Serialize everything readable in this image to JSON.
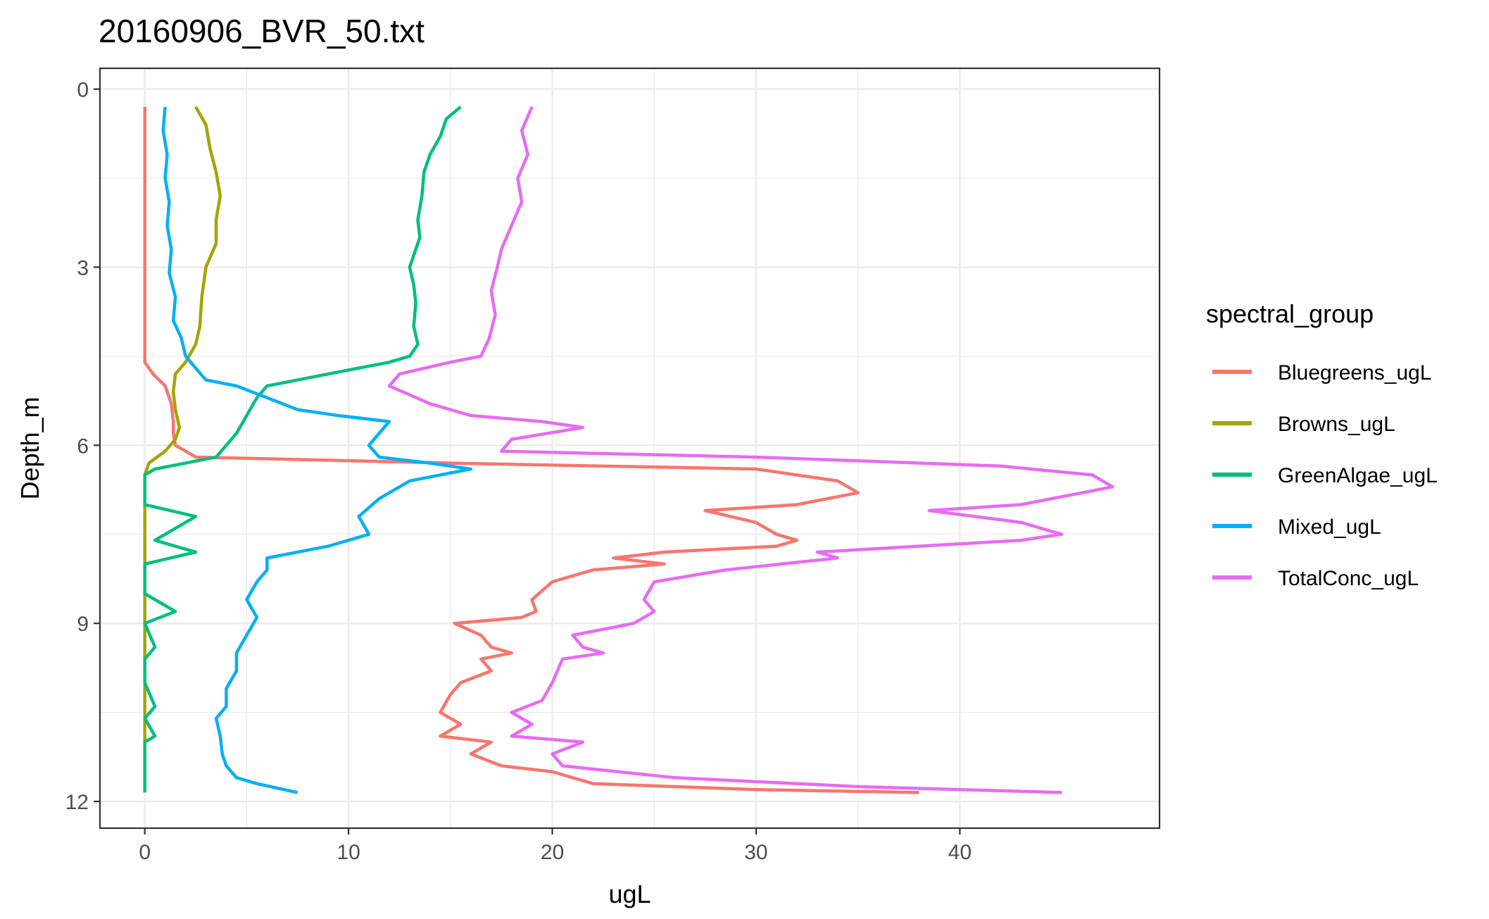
{
  "chart_data": {
    "type": "line",
    "title": "20160906_BVR_50.txt",
    "xlabel": "ugL",
    "ylabel": "Depth_m",
    "xlim": [
      -2.2,
      49.8
    ],
    "ylim": [
      12.45,
      -0.35
    ],
    "y_reversed": true,
    "x_ticks": [
      "0",
      "10",
      "20",
      "30",
      "40"
    ],
    "x_tick_values": [
      0,
      10,
      20,
      30,
      40
    ],
    "y_ticks": [
      "0",
      "3",
      "6",
      "9",
      "12"
    ],
    "y_tick_values": [
      0,
      3,
      6,
      9,
      12
    ],
    "grid": true,
    "legend": {
      "title": "spectral_group",
      "position": "right",
      "entries": [
        "Bluegreens_ugL",
        "Browns_ugL",
        "GreenAlgae_ugL",
        "Mixed_ugL",
        "TotalConc_ugL"
      ]
    },
    "colors": {
      "Bluegreens_ugL": "#F8766D",
      "Browns_ugL": "#A3A500",
      "GreenAlgae_ugL": "#00BF7D",
      "Mixed_ugL": "#00B0F6",
      "TotalConc_ugL": "#E76BF3",
      "grid": "#EBEBEB",
      "panel_border": "#333333"
    },
    "series": [
      {
        "name": "Bluegreens_ugL",
        "points": [
          [
            0.0,
            0.3
          ],
          [
            0.0,
            1.0
          ],
          [
            0.0,
            2.0
          ],
          [
            0.0,
            3.0
          ],
          [
            0.0,
            4.0
          ],
          [
            0.0,
            4.6
          ],
          [
            0.4,
            4.8
          ],
          [
            1.0,
            5.0
          ],
          [
            1.3,
            5.3
          ],
          [
            1.4,
            5.6
          ],
          [
            1.4,
            5.8
          ],
          [
            1.5,
            6.0
          ],
          [
            2.5,
            6.2
          ],
          [
            15.0,
            6.3
          ],
          [
            30.0,
            6.4
          ],
          [
            34.0,
            6.6
          ],
          [
            35.0,
            6.8
          ],
          [
            32.0,
            7.0
          ],
          [
            27.5,
            7.1
          ],
          [
            30.0,
            7.3
          ],
          [
            31.0,
            7.5
          ],
          [
            32.0,
            7.6
          ],
          [
            31.0,
            7.7
          ],
          [
            25.5,
            7.8
          ],
          [
            23.0,
            7.9
          ],
          [
            25.5,
            8.0
          ],
          [
            22.0,
            8.1
          ],
          [
            20.0,
            8.3
          ],
          [
            19.0,
            8.6
          ],
          [
            19.2,
            8.8
          ],
          [
            18.5,
            8.9
          ],
          [
            15.2,
            9.0
          ],
          [
            16.5,
            9.2
          ],
          [
            17.0,
            9.4
          ],
          [
            18.0,
            9.5
          ],
          [
            16.5,
            9.6
          ],
          [
            17.0,
            9.8
          ],
          [
            15.5,
            10.0
          ],
          [
            15.0,
            10.2
          ],
          [
            14.5,
            10.5
          ],
          [
            15.5,
            10.7
          ],
          [
            14.5,
            10.9
          ],
          [
            17.0,
            11.0
          ],
          [
            16.0,
            11.2
          ],
          [
            17.5,
            11.4
          ],
          [
            20.0,
            11.5
          ],
          [
            22.0,
            11.7
          ],
          [
            30.0,
            11.8
          ],
          [
            38.0,
            11.85
          ]
        ]
      },
      {
        "name": "Browns_ugL",
        "points": [
          [
            2.5,
            0.3
          ],
          [
            3.0,
            0.6
          ],
          [
            3.2,
            1.0
          ],
          [
            3.5,
            1.4
          ],
          [
            3.7,
            1.8
          ],
          [
            3.5,
            2.2
          ],
          [
            3.5,
            2.6
          ],
          [
            3.0,
            3.0
          ],
          [
            2.8,
            3.5
          ],
          [
            2.7,
            4.0
          ],
          [
            2.5,
            4.3
          ],
          [
            2.0,
            4.6
          ],
          [
            1.5,
            4.8
          ],
          [
            1.4,
            5.1
          ],
          [
            1.5,
            5.4
          ],
          [
            1.7,
            5.7
          ],
          [
            1.5,
            5.9
          ],
          [
            1.0,
            6.1
          ],
          [
            0.2,
            6.3
          ],
          [
            0.0,
            6.5
          ],
          [
            0.0,
            7.0
          ],
          [
            0.0,
            7.5
          ],
          [
            0.0,
            8.0
          ],
          [
            0.0,
            8.5
          ],
          [
            0.0,
            9.0
          ],
          [
            0.0,
            9.5
          ],
          [
            0.0,
            10.0
          ],
          [
            0.0,
            10.5
          ],
          [
            0.0,
            11.0
          ]
        ]
      },
      {
        "name": "GreenAlgae_ugL",
        "points": [
          [
            15.5,
            0.3
          ],
          [
            14.8,
            0.5
          ],
          [
            14.5,
            0.8
          ],
          [
            14.0,
            1.1
          ],
          [
            13.7,
            1.4
          ],
          [
            13.6,
            1.8
          ],
          [
            13.4,
            2.2
          ],
          [
            13.5,
            2.5
          ],
          [
            13.2,
            2.8
          ],
          [
            13.0,
            3.0
          ],
          [
            13.2,
            3.3
          ],
          [
            13.3,
            3.6
          ],
          [
            13.2,
            4.0
          ],
          [
            13.4,
            4.3
          ],
          [
            13.0,
            4.5
          ],
          [
            12.0,
            4.6
          ],
          [
            9.0,
            4.8
          ],
          [
            6.0,
            5.0
          ],
          [
            5.5,
            5.2
          ],
          [
            5.0,
            5.5
          ],
          [
            4.5,
            5.8
          ],
          [
            4.0,
            6.0
          ],
          [
            3.5,
            6.2
          ],
          [
            2.0,
            6.3
          ],
          [
            0.5,
            6.4
          ],
          [
            0.0,
            6.5
          ],
          [
            0.0,
            7.0
          ],
          [
            2.5,
            7.2
          ],
          [
            1.5,
            7.4
          ],
          [
            0.5,
            7.6
          ],
          [
            2.5,
            7.8
          ],
          [
            0.0,
            8.0
          ],
          [
            0.0,
            8.5
          ],
          [
            1.5,
            8.8
          ],
          [
            0.0,
            9.0
          ],
          [
            0.5,
            9.4
          ],
          [
            0.0,
            9.6
          ],
          [
            0.0,
            10.0
          ],
          [
            0.5,
            10.4
          ],
          [
            0.0,
            10.6
          ],
          [
            0.5,
            10.9
          ],
          [
            0.0,
            11.0
          ],
          [
            0.0,
            11.85
          ]
        ]
      },
      {
        "name": "Mixed_ugL",
        "points": [
          [
            1.0,
            0.3
          ],
          [
            0.9,
            0.7
          ],
          [
            1.1,
            1.1
          ],
          [
            1.0,
            1.5
          ],
          [
            1.2,
            1.9
          ],
          [
            1.1,
            2.3
          ],
          [
            1.3,
            2.7
          ],
          [
            1.2,
            3.1
          ],
          [
            1.5,
            3.5
          ],
          [
            1.4,
            3.9
          ],
          [
            1.8,
            4.2
          ],
          [
            2.0,
            4.5
          ],
          [
            2.5,
            4.7
          ],
          [
            3.0,
            4.9
          ],
          [
            4.5,
            5.0
          ],
          [
            6.0,
            5.2
          ],
          [
            7.5,
            5.4
          ],
          [
            9.5,
            5.5
          ],
          [
            12.0,
            5.6
          ],
          [
            11.5,
            5.8
          ],
          [
            11.0,
            6.0
          ],
          [
            11.5,
            6.2
          ],
          [
            14.0,
            6.3
          ],
          [
            16.0,
            6.4
          ],
          [
            13.0,
            6.6
          ],
          [
            11.5,
            6.9
          ],
          [
            10.5,
            7.2
          ],
          [
            11.0,
            7.5
          ],
          [
            9.0,
            7.7
          ],
          [
            6.0,
            7.9
          ],
          [
            6.0,
            8.1
          ],
          [
            5.5,
            8.3
          ],
          [
            5.0,
            8.6
          ],
          [
            5.5,
            8.9
          ],
          [
            5.0,
            9.2
          ],
          [
            4.5,
            9.5
          ],
          [
            4.5,
            9.8
          ],
          [
            4.0,
            10.1
          ],
          [
            4.0,
            10.4
          ],
          [
            3.5,
            10.6
          ],
          [
            3.7,
            10.9
          ],
          [
            3.8,
            11.2
          ],
          [
            4.0,
            11.4
          ],
          [
            4.5,
            11.6
          ],
          [
            5.5,
            11.7
          ],
          [
            7.5,
            11.85
          ]
        ]
      },
      {
        "name": "TotalConc_ugL",
        "points": [
          [
            19.0,
            0.3
          ],
          [
            18.5,
            0.7
          ],
          [
            18.8,
            1.1
          ],
          [
            18.3,
            1.5
          ],
          [
            18.5,
            1.9
          ],
          [
            18.0,
            2.3
          ],
          [
            17.5,
            2.7
          ],
          [
            17.3,
            3.0
          ],
          [
            17.0,
            3.4
          ],
          [
            17.2,
            3.8
          ],
          [
            16.9,
            4.2
          ],
          [
            16.5,
            4.5
          ],
          [
            15.0,
            4.6
          ],
          [
            12.5,
            4.8
          ],
          [
            12.0,
            5.0
          ],
          [
            14.0,
            5.3
          ],
          [
            16.0,
            5.5
          ],
          [
            19.5,
            5.6
          ],
          [
            21.5,
            5.7
          ],
          [
            18.0,
            5.9
          ],
          [
            17.5,
            6.1
          ],
          [
            30.0,
            6.2
          ],
          [
            42.0,
            6.35
          ],
          [
            46.5,
            6.5
          ],
          [
            47.5,
            6.7
          ],
          [
            43.0,
            7.0
          ],
          [
            38.5,
            7.1
          ],
          [
            43.0,
            7.3
          ],
          [
            45.0,
            7.5
          ],
          [
            43.0,
            7.6
          ],
          [
            33.0,
            7.8
          ],
          [
            34.0,
            7.9
          ],
          [
            28.5,
            8.1
          ],
          [
            25.0,
            8.3
          ],
          [
            24.5,
            8.6
          ],
          [
            25.0,
            8.8
          ],
          [
            24.0,
            9.0
          ],
          [
            21.0,
            9.2
          ],
          [
            21.5,
            9.4
          ],
          [
            22.5,
            9.5
          ],
          [
            20.5,
            9.6
          ],
          [
            20.0,
            10.0
          ],
          [
            19.5,
            10.3
          ],
          [
            18.0,
            10.5
          ],
          [
            19.0,
            10.7
          ],
          [
            18.0,
            10.9
          ],
          [
            21.5,
            11.0
          ],
          [
            20.0,
            11.2
          ],
          [
            20.5,
            11.4
          ],
          [
            26.0,
            11.6
          ],
          [
            35.0,
            11.75
          ],
          [
            45.0,
            11.85
          ]
        ]
      }
    ]
  }
}
